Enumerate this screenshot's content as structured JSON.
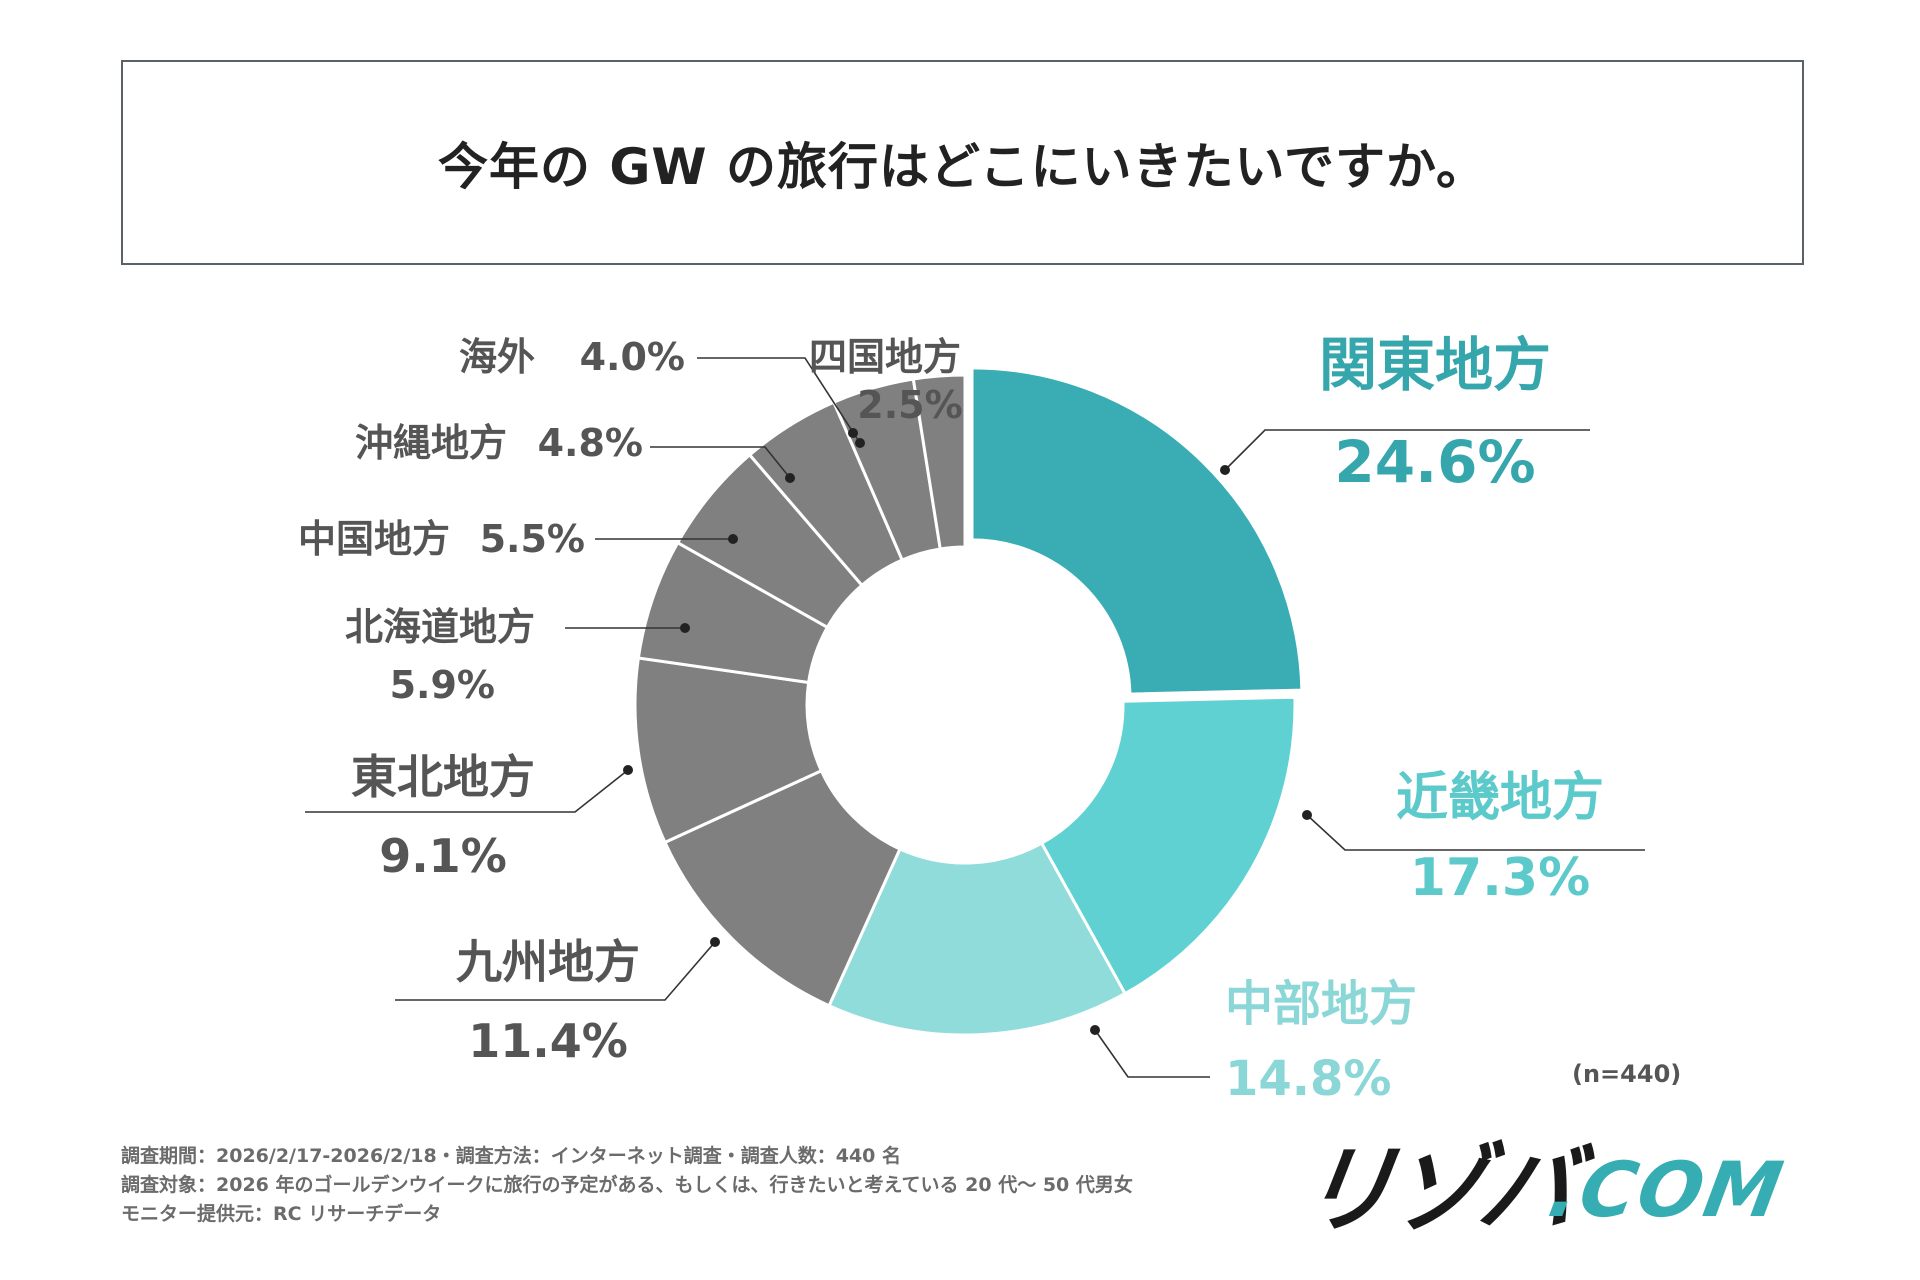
{
  "title": "今年の GW の旅行はどこにいきたいですか。",
  "chart_data": {
    "type": "pie",
    "donut": true,
    "title": "今年の GW の旅行はどこにいきたいですか。",
    "categories": [
      "関東地方",
      "近畿地方",
      "中部地方",
      "九州地方",
      "東北地方",
      "北海道地方",
      "中国地方",
      "沖縄地方",
      "海外",
      "四国地方"
    ],
    "values": [
      24.6,
      17.3,
      14.8,
      11.4,
      9.1,
      5.9,
      5.5,
      4.8,
      4.0,
      2.5
    ],
    "value_labels": [
      "24.6%",
      "17.3%",
      "14.8%",
      "11.4%",
      "9.1%",
      "5.9%",
      "5.5%",
      "4.8%",
      "4.0%",
      "2.5%"
    ],
    "colors": [
      "#3aadb4",
      "#5fd1d2",
      "#8fdcdb",
      "#808080",
      "#808080",
      "#808080",
      "#808080",
      "#808080",
      "#808080",
      "#808080"
    ],
    "label_colors": [
      "#36a6ad",
      "#5cc9cb",
      "#8bd6d6",
      "#555555",
      "#555555",
      "#555555",
      "#555555",
      "#555555",
      "#555555",
      "#555555"
    ],
    "highlight": "関東地方",
    "highlight_offset": true
  },
  "sample_size": "(n=440)",
  "footer": {
    "line1": "調査期間：2026/2/17-2026/2/18・調査方法：インターネット調査・調査人数：440 名",
    "line2": "調査対象：2026 年のゴールデンウイークに旅行の予定がある、もしくは、行きたいと考えている 20 代〜 50 代男女",
    "line3": "モニター提供元：RC リサーチデータ"
  },
  "logo": {
    "left": "リゾバ",
    "right": ".COM"
  }
}
